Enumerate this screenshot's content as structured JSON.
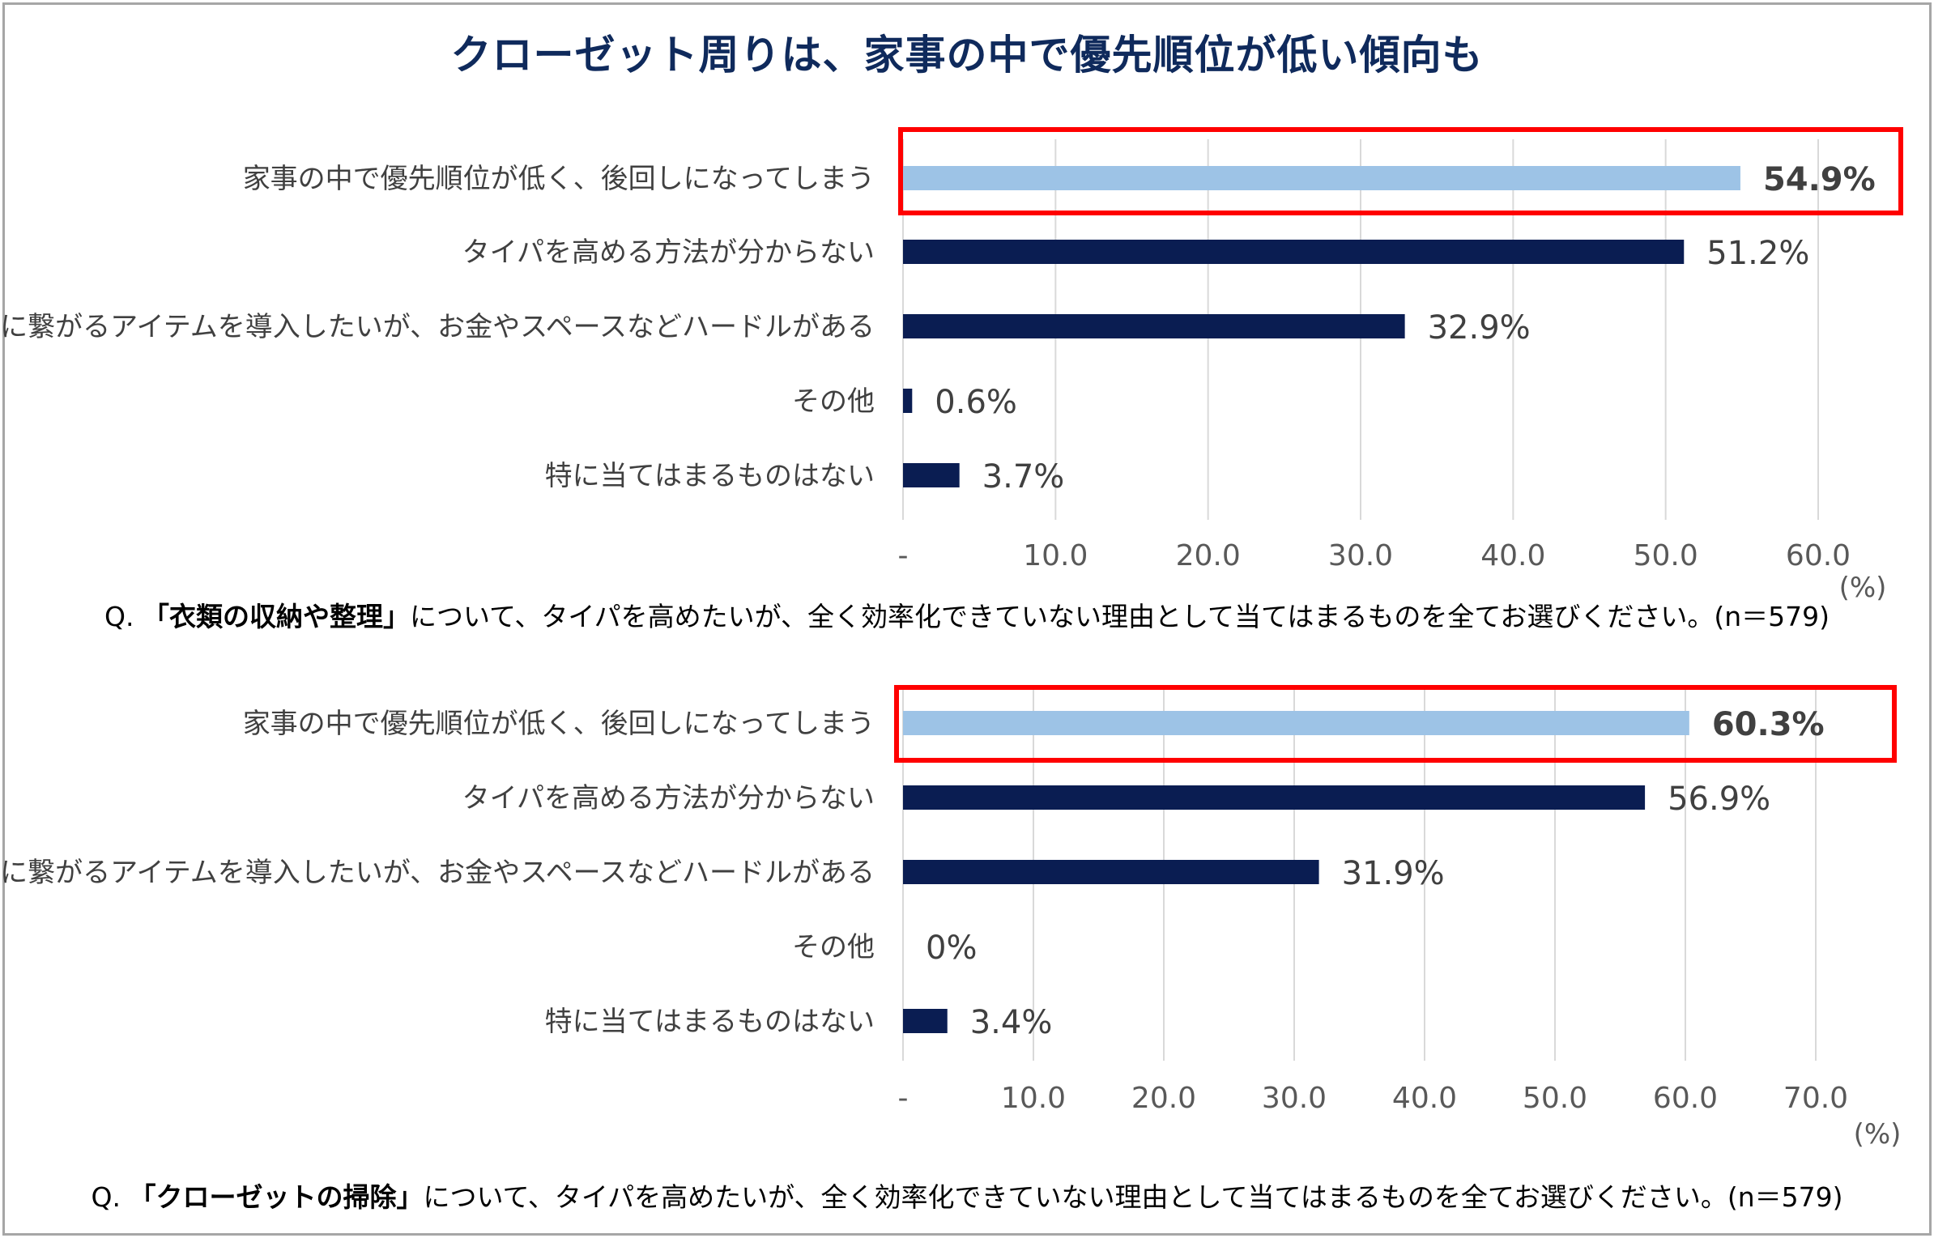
{
  "title": "クローゼット周りは、家事の中で優先順位が低い傾向も",
  "colors": {
    "highlight_bar": "#9dc3e6",
    "bar": "#0a1d52",
    "box": "#ff0000",
    "grid": "#d9d9d9"
  },
  "chart_data": [
    {
      "type": "bar",
      "orientation": "horizontal",
      "categories": [
        "家事の中で優先順位が低く、後回しになってしまう",
        "タイパを高める方法が分からない",
        "タイパに繋がるアイテムを導入したいが、お金やスペースなどハードルがある",
        "その他",
        "特に当てはまるものはない"
      ],
      "values": [
        54.9,
        51.2,
        32.9,
        0.6,
        3.7
      ],
      "value_labels": [
        "54.9%",
        "51.2%",
        "32.9%",
        "0.6%",
        "3.7%"
      ],
      "highlight_index": 0,
      "xlim": [
        0,
        60
      ],
      "xticks": [
        0,
        10,
        20,
        30,
        40,
        50,
        60
      ],
      "xtick_labels": [
        "-",
        "10.0",
        "20.0",
        "30.0",
        "40.0",
        "50.0",
        "60.0"
      ],
      "unit": "(%)",
      "grid": true,
      "question": {
        "prefix": "Q.",
        "bold": "「衣類の収納や整理」",
        "rest": "について、タイパを高めたいが、全く効率化できていない理由として当てはまるものを全てお選びください。(n＝579)"
      }
    },
    {
      "type": "bar",
      "orientation": "horizontal",
      "categories": [
        "家事の中で優先順位が低く、後回しになってしまう",
        "タイパを高める方法が分からない",
        "タイパに繋がるアイテムを導入したいが、お金やスペースなどハードルがある",
        "その他",
        "特に当てはまるものはない"
      ],
      "values": [
        60.3,
        56.9,
        31.9,
        0,
        3.4
      ],
      "value_labels": [
        "60.3%",
        "56.9%",
        "31.9%",
        "0%",
        "3.4%"
      ],
      "highlight_index": 0,
      "xlim": [
        0,
        70
      ],
      "xticks": [
        0,
        10,
        20,
        30,
        40,
        50,
        60,
        70
      ],
      "xtick_labels": [
        "-",
        "10.0",
        "20.0",
        "30.0",
        "40.0",
        "50.0",
        "60.0",
        "70.0"
      ],
      "unit": "(%)",
      "grid": true,
      "question": {
        "prefix": "Q.",
        "bold": "「クローゼットの掃除」",
        "rest": "について、タイパを高めたいが、全く効率化できていない理由として当てはまるものを全てお選びください。(n＝579)"
      }
    }
  ]
}
